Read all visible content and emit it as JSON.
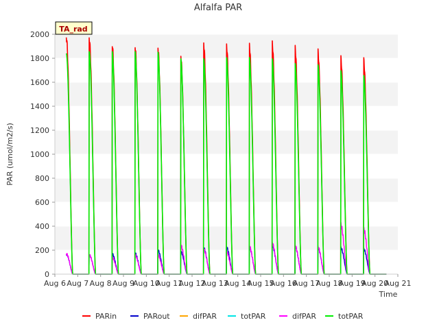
{
  "chart_data": {
    "type": "line",
    "title": "Alfalfa PAR",
    "xlabel": "Time",
    "ylabel": "PAR (umol/m2/s)",
    "annotation": "TA_rad",
    "x_range": [
      "Aug 6",
      "Aug 21"
    ],
    "ylim": [
      0,
      2000
    ],
    "x_ticks": [
      "Aug 6",
      "Aug 7",
      "Aug 8",
      "Aug 9",
      "Aug 10",
      "Aug 11",
      "Aug 12",
      "Aug 13",
      "Aug 14",
      "Aug 15",
      "Aug 16",
      "Aug 17",
      "Aug 18",
      "Aug 19",
      "Aug 20",
      "Aug 21"
    ],
    "y_ticks": [
      0,
      200,
      400,
      600,
      800,
      1000,
      1200,
      1400,
      1600,
      1800,
      2000
    ],
    "grid": "horizontal bands",
    "legend_position": "bottom",
    "days": [
      "Aug 6",
      "Aug 7",
      "Aug 8",
      "Aug 9",
      "Aug 10",
      "Aug 11",
      "Aug 12",
      "Aug 13",
      "Aug 14",
      "Aug 15",
      "Aug 16",
      "Aug 17",
      "Aug 18",
      "Aug 19"
    ],
    "daily_peaks": {
      "PARin": [
        1970,
        1960,
        1920,
        1905,
        1895,
        1820,
        1925,
        1910,
        1910,
        1925,
        1885,
        1855,
        1800,
        1785
      ],
      "PARout": [
        165,
        160,
        170,
        175,
        200,
        190,
        220,
        225,
        225,
        240,
        230,
        220,
        220,
        210
      ],
      "difPAR": [
        170,
        160,
        140,
        160,
        160,
        240,
        210,
        185,
        230,
        255,
        235,
        225,
        410,
        375
      ],
      "totPAR": [
        1840,
        1855,
        1860,
        1860,
        1855,
        1800,
        1800,
        1810,
        1810,
        1800,
        1760,
        1750,
        1700,
        1660
      ]
    },
    "series": [
      {
        "name": "PARin",
        "color": "#ff0000"
      },
      {
        "name": "PARout",
        "color": "#0000cc"
      },
      {
        "name": "difPAR",
        "color": "#ffa500"
      },
      {
        "name": "totPAR",
        "color": "#00e5e5"
      },
      {
        "name": "difPAR",
        "color": "#ff00ff"
      },
      {
        "name": "totPAR",
        "color": "#00ee00"
      }
    ]
  }
}
